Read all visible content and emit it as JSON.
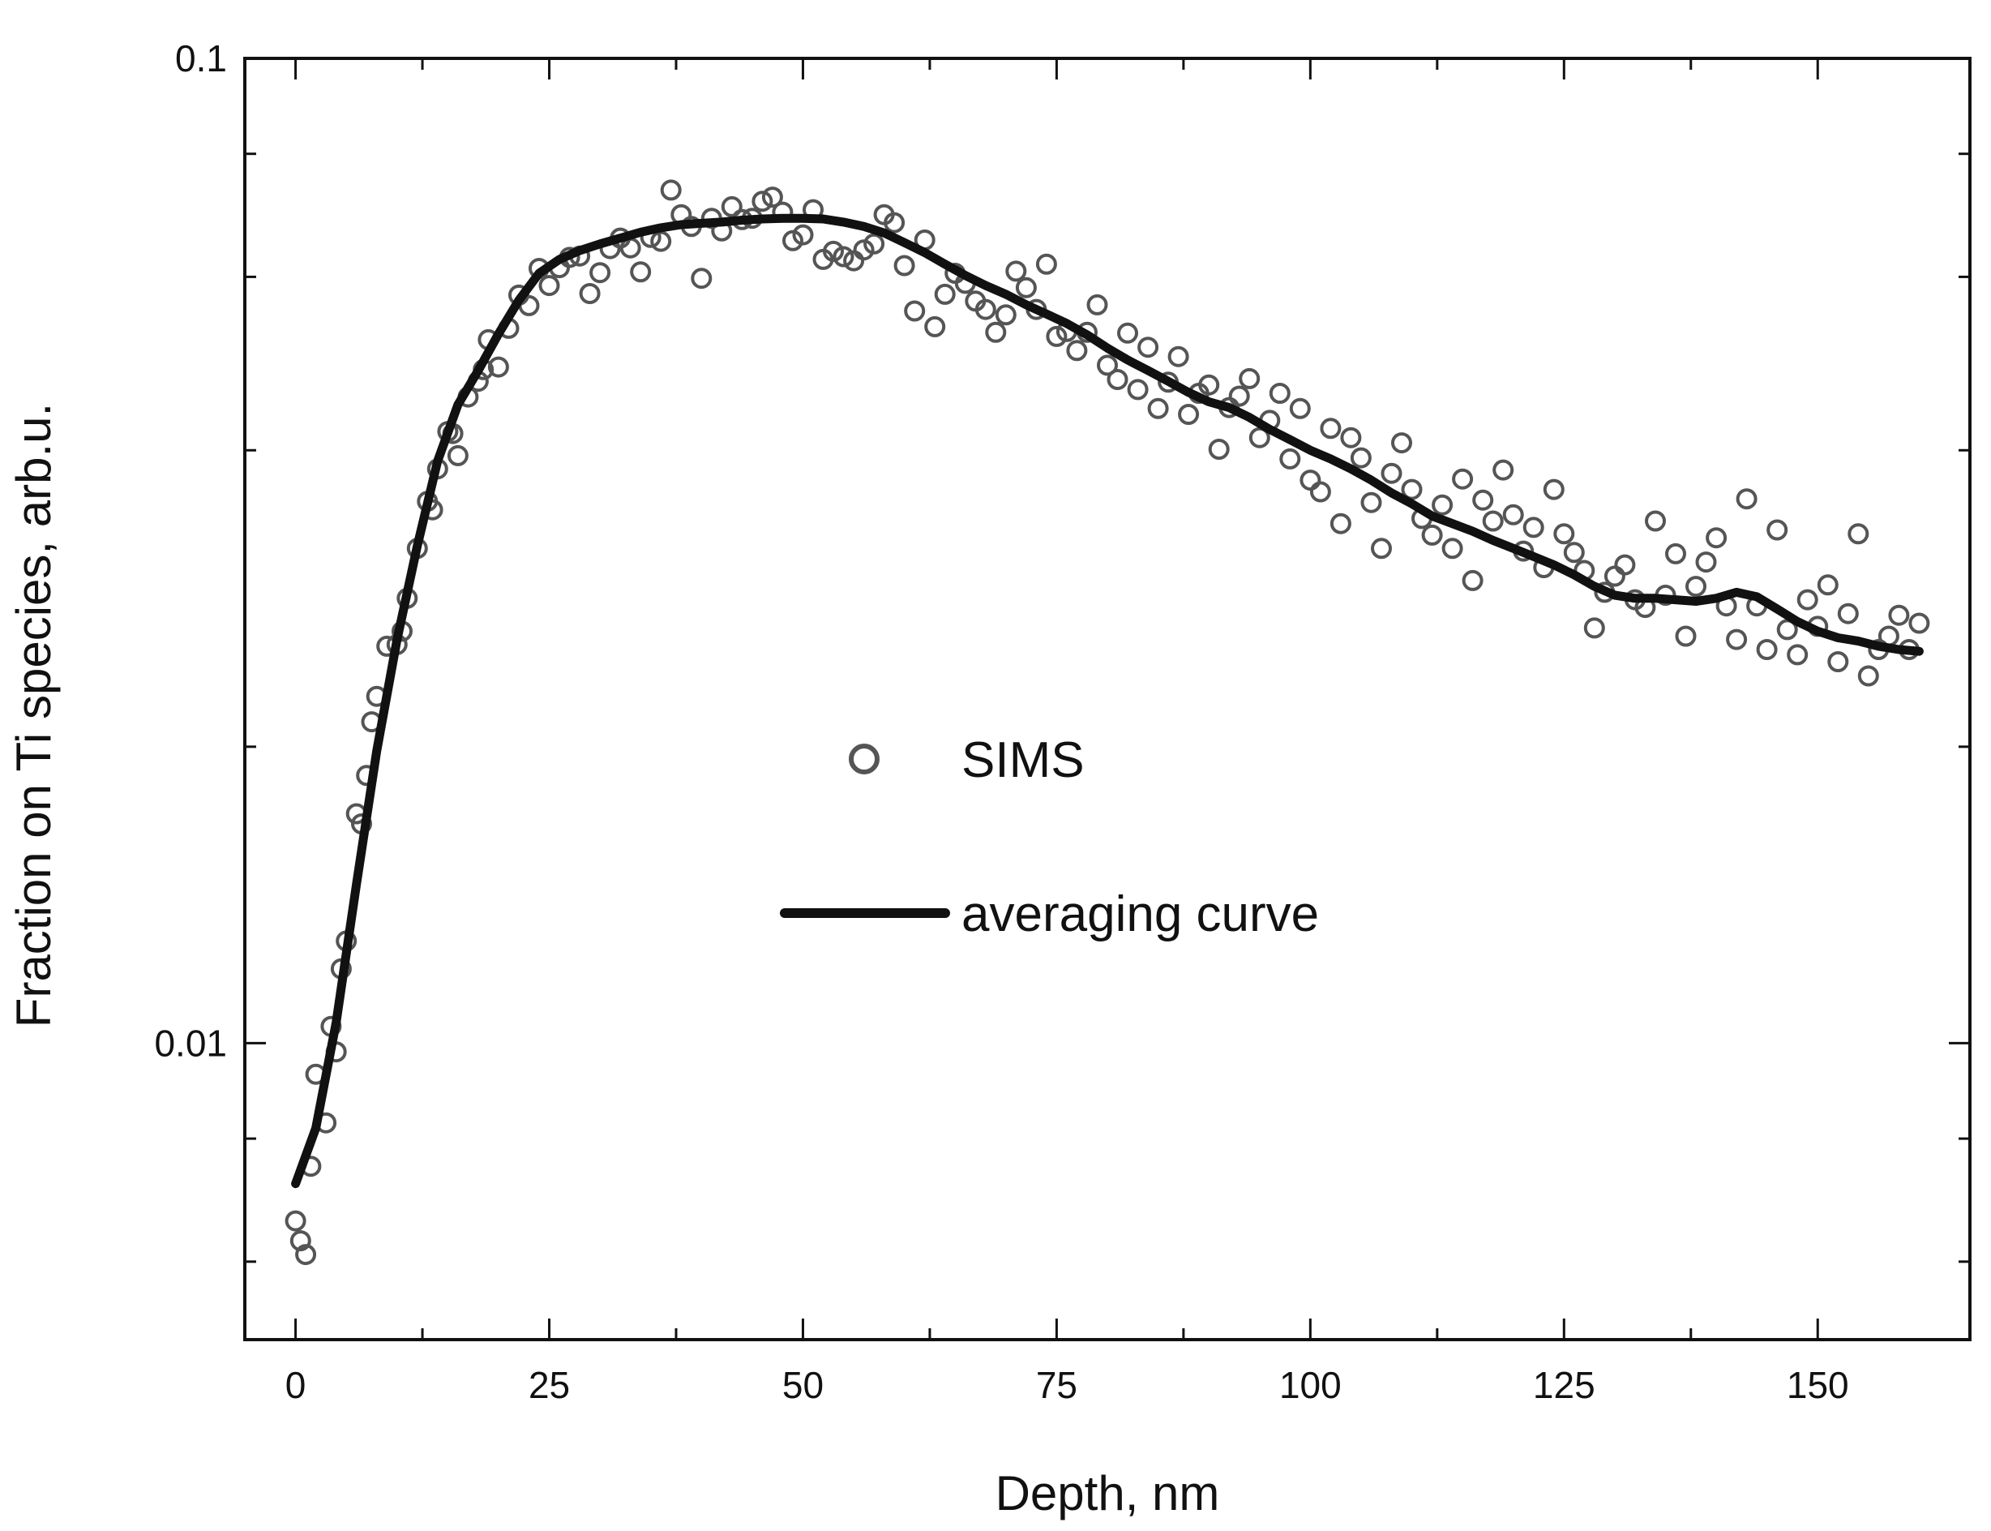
{
  "chart_data": {
    "type": "scatter",
    "title": "",
    "xlabel": "Depth, nm",
    "ylabel": "Fraction on Ti species, arb.u.",
    "xlim": [
      -5,
      165
    ],
    "ylim": [
      0.005,
      0.1
    ],
    "yscale": "log",
    "x_ticks": [
      0,
      25,
      50,
      75,
      100,
      125,
      150
    ],
    "x_tick_labels": [
      "0",
      "25",
      "50",
      "75",
      "100",
      "125",
      "150"
    ],
    "y_ticks": [
      0.01,
      0.1
    ],
    "y_tick_labels": [
      "0.01",
      "0.1"
    ],
    "legend": {
      "position": "center",
      "entries": [
        {
          "label": "SIMS",
          "marker": "circle"
        },
        {
          "label": "averaging curve",
          "marker": "line"
        }
      ]
    },
    "colors": {
      "marker": "#555555",
      "curve": "#111111",
      "axes": "#111111"
    },
    "series": [
      {
        "name": "SIMS",
        "kind": "scatter",
        "points": [
          [
            0,
            0.0066
          ],
          [
            0.5,
            0.0063
          ],
          [
            1,
            0.0061
          ],
          [
            1.5,
            0.0075
          ],
          [
            2,
            0.0093
          ],
          [
            3,
            0.0083
          ],
          [
            3.5,
            0.0104
          ],
          [
            4,
            0.0098
          ],
          [
            4.5,
            0.0119
          ],
          [
            5,
            0.0127
          ],
          [
            6,
            0.0171
          ],
          [
            6.5,
            0.0167
          ],
          [
            7,
            0.0187
          ],
          [
            7.5,
            0.0212
          ],
          [
            8,
            0.0225
          ],
          [
            9,
            0.0253
          ],
          [
            10,
            0.0254
          ],
          [
            10.5,
            0.0262
          ],
          [
            11,
            0.0283
          ],
          [
            12,
            0.0318
          ],
          [
            13,
            0.0355
          ],
          [
            13.5,
            0.0348
          ],
          [
            14,
            0.0383
          ],
          [
            15,
            0.0418
          ],
          [
            15.5,
            0.0416
          ],
          [
            16,
            0.0395
          ],
          [
            17,
            0.0453
          ],
          [
            18,
            0.047
          ],
          [
            18.5,
            0.0483
          ],
          [
            19,
            0.0518
          ],
          [
            20,
            0.0486
          ],
          [
            21,
            0.0532
          ],
          [
            22,
            0.0575
          ],
          [
            23,
            0.0561
          ],
          [
            24,
            0.0612
          ],
          [
            25,
            0.0588
          ],
          [
            26,
            0.0613
          ],
          [
            27,
            0.0628
          ],
          [
            28,
            0.063
          ],
          [
            29,
            0.0577
          ],
          [
            30,
            0.0606
          ],
          [
            31,
            0.0641
          ],
          [
            32,
            0.0657
          ],
          [
            33,
            0.0642
          ],
          [
            34,
            0.0607
          ],
          [
            35,
            0.0658
          ],
          [
            36,
            0.0652
          ],
          [
            37,
            0.0735
          ],
          [
            38,
            0.0694
          ],
          [
            39,
            0.0675
          ],
          [
            40,
            0.0598
          ],
          [
            41,
            0.0688
          ],
          [
            42,
            0.0668
          ],
          [
            43,
            0.0707
          ],
          [
            44,
            0.0686
          ],
          [
            45,
            0.0688
          ],
          [
            46,
            0.0716
          ],
          [
            47,
            0.0723
          ],
          [
            48,
            0.0698
          ],
          [
            49,
            0.0653
          ],
          [
            50,
            0.0662
          ],
          [
            51,
            0.0702
          ],
          [
            52,
            0.0625
          ],
          [
            53,
            0.0637
          ],
          [
            54,
            0.0629
          ],
          [
            55,
            0.0623
          ],
          [
            56,
            0.0639
          ],
          [
            57,
            0.0648
          ],
          [
            58,
            0.0694
          ],
          [
            59,
            0.0681
          ],
          [
            60,
            0.0616
          ],
          [
            61,
            0.0554
          ],
          [
            62,
            0.0654
          ],
          [
            63,
            0.0534
          ],
          [
            64,
            0.0576
          ],
          [
            65,
            0.0605
          ],
          [
            66,
            0.0591
          ],
          [
            67,
            0.0567
          ],
          [
            68,
            0.0556
          ],
          [
            69,
            0.0527
          ],
          [
            70,
            0.0549
          ],
          [
            71,
            0.0608
          ],
          [
            72,
            0.0585
          ],
          [
            73,
            0.0556
          ],
          [
            74,
            0.0618
          ],
          [
            75,
            0.0522
          ],
          [
            76,
            0.0528
          ],
          [
            77,
            0.0505
          ],
          [
            78,
            0.0527
          ],
          [
            79,
            0.0562
          ],
          [
            80,
            0.0488
          ],
          [
            81,
            0.0472
          ],
          [
            82,
            0.0526
          ],
          [
            83,
            0.0461
          ],
          [
            84,
            0.0509
          ],
          [
            85,
            0.0441
          ],
          [
            86,
            0.0469
          ],
          [
            87,
            0.0498
          ],
          [
            88,
            0.0435
          ],
          [
            89,
            0.0457
          ],
          [
            90,
            0.0466
          ],
          [
            91,
            0.0401
          ],
          [
            92,
            0.0442
          ],
          [
            93,
            0.0454
          ],
          [
            94,
            0.0473
          ],
          [
            95,
            0.0412
          ],
          [
            96,
            0.0429
          ],
          [
            97,
            0.0457
          ],
          [
            98,
            0.0392
          ],
          [
            99,
            0.0441
          ],
          [
            100,
            0.0373
          ],
          [
            101,
            0.0363
          ],
          [
            102,
            0.0421
          ],
          [
            103,
            0.0337
          ],
          [
            104,
            0.0412
          ],
          [
            105,
            0.0393
          ],
          [
            106,
            0.0354
          ],
          [
            107,
            0.0318
          ],
          [
            108,
            0.0379
          ],
          [
            109,
            0.0407
          ],
          [
            110,
            0.0365
          ],
          [
            111,
            0.0341
          ],
          [
            112,
            0.0328
          ],
          [
            113,
            0.0352
          ],
          [
            114,
            0.0318
          ],
          [
            115,
            0.0374
          ],
          [
            116,
            0.0295
          ],
          [
            117,
            0.0356
          ],
          [
            118,
            0.0339
          ],
          [
            119,
            0.0382
          ],
          [
            120,
            0.0344
          ],
          [
            121,
            0.0316
          ],
          [
            122,
            0.0334
          ],
          [
            123,
            0.0304
          ],
          [
            124,
            0.0365
          ],
          [
            125,
            0.0329
          ],
          [
            126,
            0.0315
          ],
          [
            127,
            0.0302
          ],
          [
            128,
            0.0264
          ],
          [
            129,
            0.0287
          ],
          [
            130,
            0.0298
          ],
          [
            131,
            0.0306
          ],
          [
            132,
            0.0282
          ],
          [
            133,
            0.0277
          ],
          [
            134,
            0.0339
          ],
          [
            135,
            0.0285
          ],
          [
            136,
            0.0314
          ],
          [
            137,
            0.0259
          ],
          [
            138,
            0.0291
          ],
          [
            139,
            0.0308
          ],
          [
            140,
            0.0326
          ],
          [
            141,
            0.0278
          ],
          [
            142,
            0.0257
          ],
          [
            143,
            0.0357
          ],
          [
            144,
            0.0278
          ],
          [
            145,
            0.0251
          ],
          [
            146,
            0.0332
          ],
          [
            147,
            0.0263
          ],
          [
            148,
            0.0248
          ],
          [
            149,
            0.0282
          ],
          [
            150,
            0.0265
          ],
          [
            151,
            0.0292
          ],
          [
            152,
            0.0244
          ],
          [
            153,
            0.0273
          ],
          [
            154,
            0.0329
          ],
          [
            155,
            0.0236
          ],
          [
            156,
            0.0251
          ],
          [
            157,
            0.0259
          ],
          [
            158,
            0.0272
          ],
          [
            159,
            0.0251
          ],
          [
            160,
            0.0267
          ]
        ]
      },
      {
        "name": "averaging curve",
        "kind": "line",
        "points": [
          [
            0,
            0.0072
          ],
          [
            2,
            0.0082
          ],
          [
            4,
            0.0105
          ],
          [
            6,
            0.0145
          ],
          [
            8,
            0.0198
          ],
          [
            10,
            0.0257
          ],
          [
            12,
            0.032
          ],
          [
            14,
            0.039
          ],
          [
            16,
            0.0445
          ],
          [
            18,
            0.0482
          ],
          [
            20,
            0.0525
          ],
          [
            22,
            0.0568
          ],
          [
            24,
            0.0605
          ],
          [
            26,
            0.0625
          ],
          [
            28,
            0.0638
          ],
          [
            30,
            0.0648
          ],
          [
            32,
            0.0657
          ],
          [
            34,
            0.0666
          ],
          [
            36,
            0.0673
          ],
          [
            38,
            0.0678
          ],
          [
            40,
            0.068
          ],
          [
            42,
            0.0682
          ],
          [
            44,
            0.0685
          ],
          [
            46,
            0.0687
          ],
          [
            48,
            0.0688
          ],
          [
            50,
            0.0688
          ],
          [
            52,
            0.0687
          ],
          [
            54,
            0.0682
          ],
          [
            56,
            0.0675
          ],
          [
            58,
            0.0665
          ],
          [
            60,
            0.065
          ],
          [
            62,
            0.0635
          ],
          [
            64,
            0.0618
          ],
          [
            66,
            0.0602
          ],
          [
            68,
            0.0588
          ],
          [
            70,
            0.0576
          ],
          [
            72,
            0.0562
          ],
          [
            74,
            0.055
          ],
          [
            76,
            0.0538
          ],
          [
            78,
            0.0524
          ],
          [
            80,
            0.0508
          ],
          [
            82,
            0.0494
          ],
          [
            84,
            0.0482
          ],
          [
            86,
            0.047
          ],
          [
            88,
            0.0458
          ],
          [
            90,
            0.0448
          ],
          [
            92,
            0.0442
          ],
          [
            94,
            0.0432
          ],
          [
            96,
            0.042
          ],
          [
            98,
            0.041
          ],
          [
            100,
            0.04
          ],
          [
            102,
            0.0392
          ],
          [
            104,
            0.0383
          ],
          [
            106,
            0.0373
          ],
          [
            108,
            0.0362
          ],
          [
            110,
            0.0353
          ],
          [
            112,
            0.0343
          ],
          [
            114,
            0.0337
          ],
          [
            116,
            0.0331
          ],
          [
            118,
            0.0324
          ],
          [
            120,
            0.0318
          ],
          [
            122,
            0.0312
          ],
          [
            124,
            0.0306
          ],
          [
            126,
            0.0299
          ],
          [
            128,
            0.0291
          ],
          [
            130,
            0.0285
          ],
          [
            132,
            0.0283
          ],
          [
            134,
            0.0283
          ],
          [
            136,
            0.0282
          ],
          [
            138,
            0.0281
          ],
          [
            140,
            0.0283
          ],
          [
            142,
            0.0287
          ],
          [
            144,
            0.0284
          ],
          [
            146,
            0.0276
          ],
          [
            148,
            0.0268
          ],
          [
            150,
            0.0262
          ],
          [
            152,
            0.0258
          ],
          [
            154,
            0.0256
          ],
          [
            156,
            0.0253
          ],
          [
            158,
            0.0251
          ],
          [
            160,
            0.025
          ]
        ]
      }
    ]
  }
}
